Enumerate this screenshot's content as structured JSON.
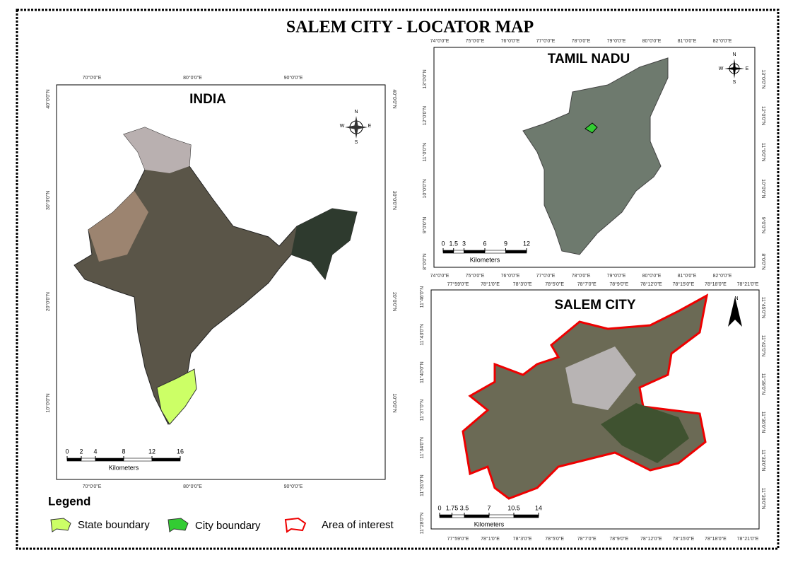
{
  "title": "SALEM CITY - LOCATOR MAP",
  "india": {
    "title": "INDIA",
    "x_labels": [
      "70°0'0\"E",
      "80°0'0\"E",
      "90°0'0\"E"
    ],
    "y_labels_left": [
      "40°0'0\"N",
      "30°0'0\"N",
      "20°0'0\"N",
      "10°0'0\"N"
    ],
    "y_labels_right": [
      "40°0'0\"N",
      "30°0'0\"N",
      "20°0'0\"N",
      "10°0'0\"N"
    ],
    "scale": [
      0,
      2,
      4,
      8,
      12,
      16
    ],
    "scale_unit": "Kilometers",
    "compass": [
      "N",
      "E",
      "S",
      "W"
    ]
  },
  "tamil_nadu": {
    "title": "TAMIL NADU",
    "x_labels": [
      "74°0'0\"E",
      "75°0'0\"E",
      "76°0'0\"E",
      "77°0'0\"E",
      "78°0'0\"E",
      "79°0'0\"E",
      "80°0'0\"E",
      "81°0'0\"E",
      "82°0'0\"E"
    ],
    "y_labels_left": [
      "13°0'0\"N",
      "12°0'0\"N",
      "11°0'0\"N",
      "10°0'0\"N",
      "9°0'0\"N",
      "8°0'0\"N"
    ],
    "y_labels_right": [
      "13°0'0\"N",
      "12°0'0\"N",
      "11°0'0\"N",
      "10°0'0\"N",
      "9°0'0\"N",
      "8°0'0\"N"
    ],
    "scale": [
      0,
      1.5,
      3,
      6,
      9,
      12
    ],
    "scale_unit": "Kilometers",
    "compass": [
      "N",
      "E",
      "S",
      "W"
    ]
  },
  "salem": {
    "title": "SALEM CITY",
    "x_labels": [
      "77°59'0\"E",
      "78°1'0\"E",
      "78°3'0\"E",
      "78°5'0\"E",
      "78°7'0\"E",
      "78°9'0\"E",
      "78°12'0\"E",
      "78°15'0\"E",
      "78°18'0\"E",
      "78°21'0\"E"
    ],
    "y_labels_left": [
      "11°46'0\"N",
      "11°43'0\"N",
      "11°40'0\"N",
      "11°37'0\"N",
      "11°34'0\"N",
      "11°31'0\"N",
      "11°28'0\"N"
    ],
    "y_labels_right": [
      "11°45'0\"N",
      "11°42'0\"N",
      "11°39'0\"N",
      "11°36'0\"N",
      "11°33'0\"N",
      "11°30'0\"N"
    ],
    "scale": [
      0,
      1.75,
      3.5,
      7,
      10.5,
      14
    ],
    "scale_unit": "Kilometers",
    "compass": [
      "N"
    ]
  },
  "legend": {
    "title": "Legend",
    "items": [
      "State boundary",
      "City boundary",
      "Area of interest"
    ]
  }
}
